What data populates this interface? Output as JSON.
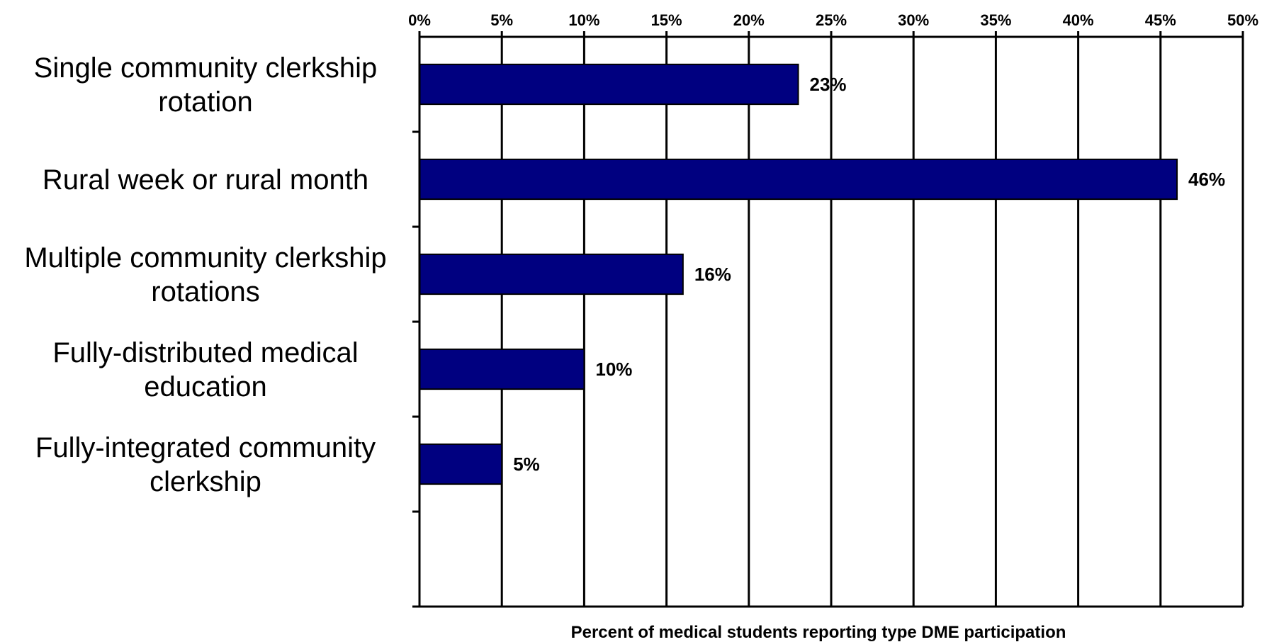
{
  "chart_data": {
    "type": "bar",
    "orientation": "horizontal",
    "categories": [
      [
        "Single community clerkship",
        "rotation"
      ],
      [
        "Rural week or rural month"
      ],
      [
        "Multiple community clerkship",
        "rotations"
      ],
      [
        "Fully-distributed medical",
        "education"
      ],
      [
        "Fully-integrated community",
        "clerkship"
      ]
    ],
    "values": [
      23,
      46,
      16,
      10,
      5
    ],
    "value_labels": [
      "23%",
      "46%",
      "16%",
      "10%",
      "5%"
    ],
    "xlim": [
      0,
      50
    ],
    "x_ticks": [
      0,
      5,
      10,
      15,
      20,
      25,
      30,
      35,
      40,
      45,
      50
    ],
    "x_tick_labels": [
      "0%",
      "5%",
      "10%",
      "15%",
      "20%",
      "25%",
      "30%",
      "35%",
      "40%",
      "45%",
      "50%"
    ],
    "xlabel": "Percent of medical students reporting type DME participation",
    "ylabel": "",
    "title": "",
    "x_axis_position": "top",
    "grid": "vertical",
    "legend": "none",
    "colors": {
      "bar_fill": "#000080",
      "bar_stroke": "#000000",
      "grid": "#000000"
    }
  }
}
